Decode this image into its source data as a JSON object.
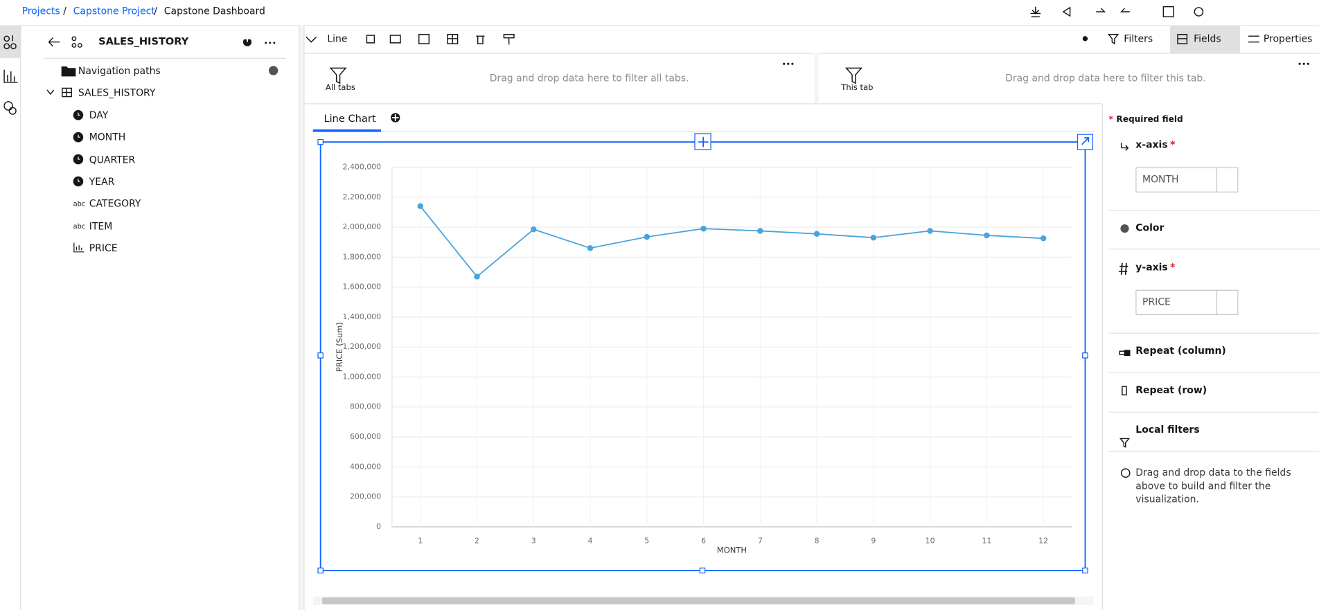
{
  "breadcrumb": {
    "items": [
      "Projects",
      "Capstone Project",
      "Capstone Dashboard"
    ],
    "separator": "/"
  },
  "data_panel": {
    "title": "SALES_HISTORY",
    "navigation": "Navigation paths",
    "table": "SALES_HISTORY",
    "fields": [
      {
        "name": "DAY"
      },
      {
        "name": "MONTH"
      },
      {
        "name": "QUARTER"
      },
      {
        "name": "YEAR"
      },
      {
        "name": "CATEGORY",
        "icon": "abc"
      },
      {
        "name": "ITEM",
        "icon": "abc"
      },
      {
        "name": "PRICE"
      }
    ]
  },
  "toolbar": {
    "chart_type": "Line",
    "filters": "Filters",
    "fields": "Fields",
    "properties": "Properties"
  },
  "filters": {
    "all_tabs": {
      "label": "All tabs",
      "hint": "Drag and drop data here to filter all tabs."
    },
    "this_tab": {
      "label": "This tab",
      "hint": "Drag and drop data here to filter this tab."
    }
  },
  "tabs": [
    "Line Chart"
  ],
  "chart_data": {
    "type": "line",
    "x_label": "MONTH",
    "y_label": "PRICE (Sum)",
    "categories": [
      "1",
      "2",
      "3",
      "4",
      "5",
      "6",
      "7",
      "8",
      "9",
      "10",
      "11",
      "12"
    ],
    "series": [
      {
        "name": "PRICE",
        "color": "#4aa3dc",
        "values": [
          2140000,
          1670000,
          1985000,
          1860000,
          1935000,
          1990000,
          1975000,
          1955000,
          1930000,
          1975000,
          1945000,
          1925000
        ]
      }
    ],
    "ylim": [
      0,
      2400000
    ],
    "yticks": [
      0,
      {
        "value": 200000,
        "label": "200,000"
      },
      {
        "value": 400000,
        "label": "400,000"
      },
      {
        "value": 600000,
        "label": "600,000"
      },
      {
        "value": 800000,
        "label": "800,000"
      },
      {
        "value": 1000000,
        "label": "1,000,000"
      },
      {
        "value": 1200000,
        "label": "1,200,000"
      },
      {
        "value": 1400000,
        "label": "1,400,000"
      },
      {
        "value": 1600000,
        "label": "1,600,000"
      },
      {
        "value": 1800000,
        "label": "1,800,000"
      },
      {
        "value": 2000000,
        "label": "2,000,000"
      },
      {
        "value": 2200000,
        "label": "2,200,000"
      },
      {
        "value": 2400000,
        "label": "2,400,000"
      }
    ],
    "grid": true
  },
  "fields_panel": {
    "required_marker": "*",
    "required_label": "Required field",
    "sections": [
      {
        "label": "x-axis",
        "required": "*",
        "value": "MONTH"
      },
      {
        "label": "Color"
      },
      {
        "label": "y-axis",
        "required": "*",
        "value": "PRICE"
      },
      {
        "label": "Repeat (column)"
      },
      {
        "label": "Repeat (row)"
      },
      {
        "label": "Local filters"
      }
    ],
    "info": "Drag and drop data to the fields above to build and filter the visualization."
  }
}
